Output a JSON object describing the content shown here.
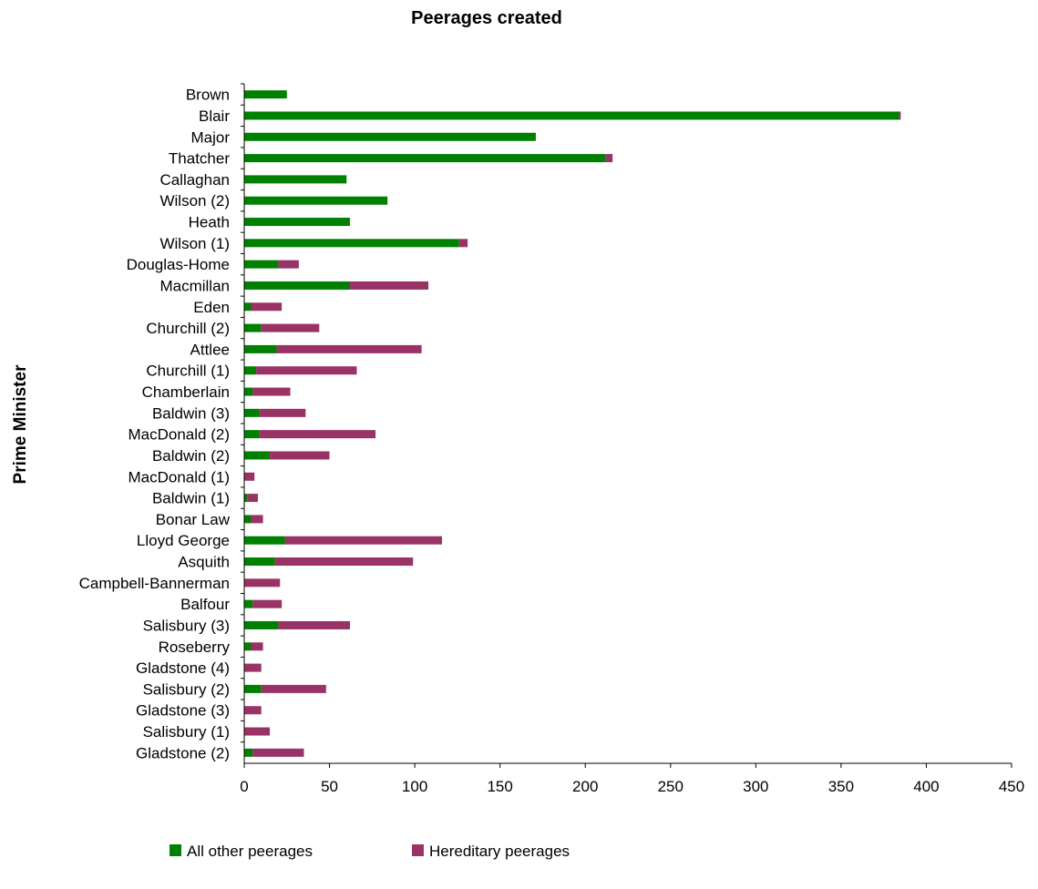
{
  "chart_data": {
    "type": "bar",
    "orientation": "horizontal",
    "stacked": true,
    "title": "Peerages created",
    "xlabel": "",
    "ylabel": "Prime Minister",
    "xlim": [
      0,
      450
    ],
    "xticks": [
      0,
      50,
      100,
      150,
      200,
      250,
      300,
      350,
      400,
      450
    ],
    "grid": false,
    "legend_position": "bottom",
    "categories": [
      "Brown",
      "Blair",
      "Major",
      "Thatcher",
      "Callaghan",
      "Wilson (2)",
      "Heath",
      "Wilson (1)",
      "Douglas-Home",
      "Macmillan",
      "Eden",
      "Churchill (2)",
      "Attlee",
      "Churchill (1)",
      "Chamberlain",
      "Baldwin (3)",
      "MacDonald (2)",
      "Baldwin (2)",
      "MacDonald (1)",
      "Baldwin (1)",
      "Bonar Law",
      "Lloyd George",
      "Asquith",
      "Campbell-Bannerman",
      "Balfour",
      "Salisbury (3)",
      "Roseberry",
      "Gladstone (4)",
      "Salisbury (2)",
      "Gladstone (3)",
      "Salisbury (1)",
      "Gladstone (2)"
    ],
    "series": [
      {
        "name": "All other peerages",
        "color": "#008000",
        "values": [
          25,
          384,
          171,
          212,
          60,
          84,
          62,
          126,
          20,
          62,
          4,
          10,
          19,
          7,
          5,
          9,
          9,
          15,
          0,
          2,
          4,
          24,
          18,
          0,
          5,
          20,
          4,
          0,
          10,
          0,
          0,
          5
        ]
      },
      {
        "name": "Hereditary peerages",
        "color": "#993366",
        "values": [
          0,
          1,
          0,
          4,
          0,
          0,
          0,
          5,
          12,
          46,
          18,
          34,
          85,
          59,
          22,
          27,
          68,
          35,
          6,
          6,
          7,
          92,
          81,
          21,
          17,
          42,
          7,
          10,
          38,
          10,
          15,
          30
        ]
      }
    ]
  }
}
